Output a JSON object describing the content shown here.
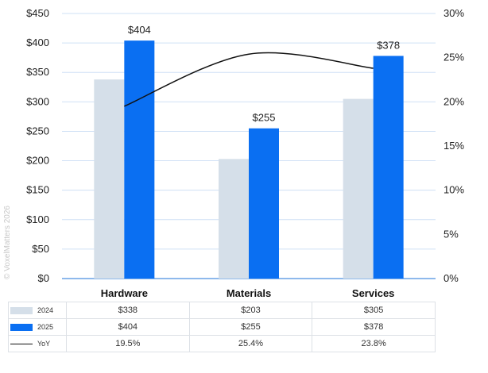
{
  "watermark": "© VoxelMatters 2026",
  "chart_data": {
    "type": "bar",
    "categories": [
      "Hardware",
      "Materials",
      "Services"
    ],
    "series": [
      {
        "name": "2024",
        "values": [
          338,
          203,
          305
        ],
        "color": "#d5dfe9",
        "display": [
          "$338",
          "$203",
          "$305"
        ]
      },
      {
        "name": "2025",
        "values": [
          404,
          255,
          378
        ],
        "color": "#0a6ff2",
        "display": [
          "$404",
          "$255",
          "$378"
        ],
        "data_labels": [
          "$404",
          "$255",
          "$378"
        ]
      }
    ],
    "line_series": {
      "name": "YoY",
      "values": [
        19.5,
        25.4,
        23.8
      ],
      "display": [
        "19.5%",
        "25.4%",
        "23.8%"
      ],
      "color": "#111111",
      "axis": "right",
      "smooth": true
    },
    "y_left": {
      "min": 0,
      "max": 450,
      "step": 50,
      "tick_labels": [
        "$0",
        "$50",
        "$100",
        "$150",
        "$200",
        "$250",
        "$300",
        "$350",
        "$400",
        "$450"
      ]
    },
    "y_right": {
      "min": 0,
      "max": 30,
      "step": 5,
      "tick_labels": [
        "0%",
        "5%",
        "10%",
        "15%",
        "20%",
        "25%",
        "30%"
      ]
    },
    "grid": true,
    "legend": "data-table-below"
  }
}
